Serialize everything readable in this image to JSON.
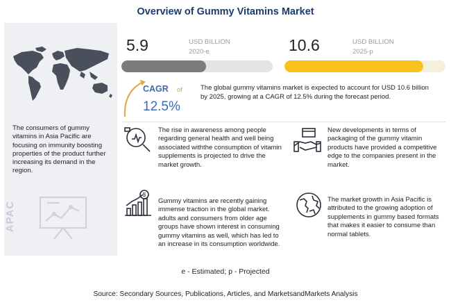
{
  "title": "Overview of Gummy Vitamins Market",
  "left_panel": {
    "description": "The consumers of gummy vitamins in Asia Pacific are focusing on immunity boosting properties of the product further increasing its demand in the region.",
    "region_label": "APAC",
    "icons": [
      "world-map-icon",
      "presentation-chart-icon"
    ]
  },
  "market_2020": {
    "value": "5.9",
    "unit": "USD BILLION",
    "year": "2020-e",
    "bar_fill_percent": 56,
    "bar_color": "#7c7c7c"
  },
  "market_2025": {
    "value": "10.6",
    "unit": "USD BILLION",
    "year": "2025-p",
    "bar_fill_percent": 86,
    "bar_color": "#f8c21c"
  },
  "cagr": {
    "label": "CAGR",
    "of": "of",
    "value": "12.5%"
  },
  "summary": "The global gummy vitamins market is expected to account for USD 10.6 billion by 2025, growing at a CAGR of 12.5% during the forecast period.",
  "insights": [
    {
      "icon": "health-awareness-icon",
      "text": "The rise in awareness among people regarding general health and well being associated withthe consumption of vitamin supplements is projected to drive the market growth."
    },
    {
      "icon": "packaging-handshake-icon",
      "text": "New developments in terms of packaging of the gummy vitamin products have provided a competitive edge to the companies present in the market."
    },
    {
      "icon": "growth-chart-icon",
      "text": "Gummy vitamins are recently gaining immense traction in the global market. adults and consumers from older age groups have shown interest in consuming gummy vitamins as well, which has led to an increase in its consumption worldwide."
    },
    {
      "icon": "globe-icon",
      "text": "The market growth in Asia Pacific is attributed to the growing adoption of supplements in gummy based formats that makes it easier to consume than normal tablets."
    }
  ],
  "footnote": "e - Estimated; p - Projected",
  "source": "Source: Secondary Sources, Publications, Articles, and MarketsandMarkets Analysis",
  "colors": {
    "title": "#1d3b6e",
    "accent_blue": "#3d6bb0",
    "accent_orange": "#e8a23a",
    "panel_bg": "#eef0f4"
  }
}
